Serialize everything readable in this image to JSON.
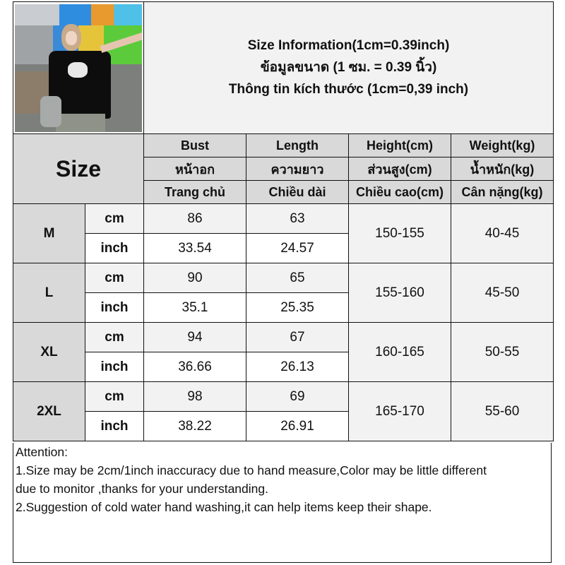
{
  "title": {
    "line1": "Size Information(1cm=0.39inch)",
    "line2": "ข้อมูลขนาด (1 ซม. = 0.39 นิ้ว)",
    "line3": "Thông tin kích thước (1cm=0,39 inch)"
  },
  "size_label": "Size",
  "columns": [
    {
      "en": "Bust",
      "th": "หน้าอก",
      "vi": "Trang chủ"
    },
    {
      "en": "Length",
      "th": "ความยาว",
      "vi": "Chiều dài"
    },
    {
      "en": "Height(cm)",
      "th": "ส่วนสูง(cm)",
      "vi": "Chiều cao(cm)"
    },
    {
      "en": "Weight(kg)",
      "th": "น้ำหนัก(kg)",
      "vi": "Cân nặng(kg)"
    }
  ],
  "rows": [
    {
      "size": "M",
      "cm_label": "cm",
      "inch_label": "inch",
      "bust_cm": "86",
      "length_cm": "63",
      "bust_inch": "33.54",
      "length_inch": "24.57",
      "height": "150-155",
      "weight": "40-45"
    },
    {
      "size": "L",
      "cm_label": "cm",
      "inch_label": "inch",
      "bust_cm": "90",
      "length_cm": "65",
      "bust_inch": "35.1",
      "length_inch": "25.35",
      "height": "155-160",
      "weight": "45-50"
    },
    {
      "size": "XL",
      "cm_label": "cm",
      "inch_label": "inch",
      "bust_cm": "94",
      "length_cm": "67",
      "bust_inch": "36.66",
      "length_inch": "26.13",
      "height": "160-165",
      "weight": "50-55"
    },
    {
      "size": "2XL",
      "cm_label": "cm",
      "inch_label": "inch",
      "bust_cm": "98",
      "length_cm": "69",
      "bust_inch": "38.22",
      "length_inch": "26.91",
      "height": "165-170",
      "weight": "55-60"
    }
  ],
  "attention": {
    "heading": "Attention:",
    "line1": "1.Size may be 2cm/1inch inaccuracy due to hand measure,Color may be little different",
    "line2": "due to monitor ,thanks for your understanding.",
    "line3": "2.Suggestion of cold water hand washing,it can help items keep their shape."
  }
}
